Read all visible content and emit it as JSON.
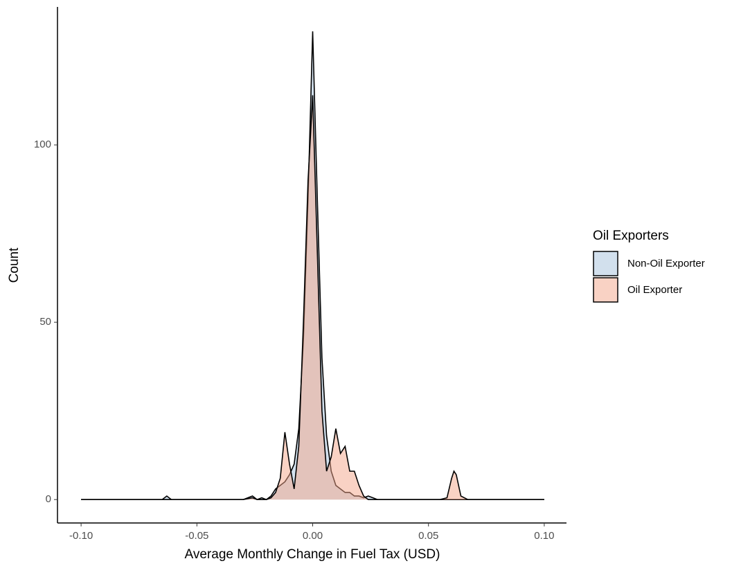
{
  "chart_data": {
    "type": "density",
    "x_label": "Average Monthly Change in Fuel Tax (USD)",
    "y_label": "Count",
    "legend_title": "Oil Exporters",
    "legend_position": "right",
    "grid": false,
    "xlim": [
      -0.1102,
      0.1096
    ],
    "ylim": [
      -6.6,
      138.9
    ],
    "xticks": [
      {
        "value": -0.1,
        "label": "-0.10"
      },
      {
        "value": -0.05,
        "label": "-0.05"
      },
      {
        "value": 0,
        "label": "0.00"
      },
      {
        "value": 0.05,
        "label": "0.05"
      },
      {
        "value": 0.1,
        "label": "0.10"
      }
    ],
    "yticks": [
      0,
      50,
      100
    ],
    "x": [
      -0.1,
      -0.065,
      -0.063,
      -0.061,
      -0.03,
      -0.026,
      -0.024,
      -0.022,
      -0.02,
      -0.018,
      -0.016,
      -0.014,
      -0.012,
      -0.01,
      -0.008,
      -0.006,
      -0.004,
      -0.002,
      0,
      0.002,
      0.004,
      0.006,
      0.008,
      0.01,
      0.012,
      0.014,
      0.016,
      0.018,
      0.02,
      0.022,
      0.024,
      0.026,
      0.028,
      0.03,
      0.055,
      0.058,
      0.06,
      0.061,
      0.062,
      0.064,
      0.067,
      0.1
    ],
    "series": [
      {
        "name": "Non-Oil Exporter",
        "color": "#a6c1dc",
        "values": [
          0,
          0,
          1,
          0,
          0,
          1,
          0,
          0.5,
          0,
          1,
          3,
          4,
          5,
          7,
          10,
          20,
          45,
          85,
          132,
          85,
          40,
          18,
          8,
          4,
          3,
          2,
          2,
          1,
          1,
          0.5,
          1,
          0.5,
          0,
          0,
          0,
          0,
          0,
          0,
          0,
          0,
          0,
          0
        ]
      },
      {
        "name": "Oil Exporter",
        "color": "#f4a58a",
        "values": [
          0,
          0,
          0,
          0,
          0,
          0.5,
          0,
          0,
          0,
          0.5,
          2,
          6,
          19,
          10,
          3,
          15,
          50,
          90,
          114,
          70,
          25,
          8,
          12,
          20,
          13,
          15,
          8,
          8,
          4,
          1,
          0,
          0,
          0,
          0,
          0,
          0.5,
          6,
          8,
          7,
          1,
          0,
          0
        ]
      }
    ]
  }
}
